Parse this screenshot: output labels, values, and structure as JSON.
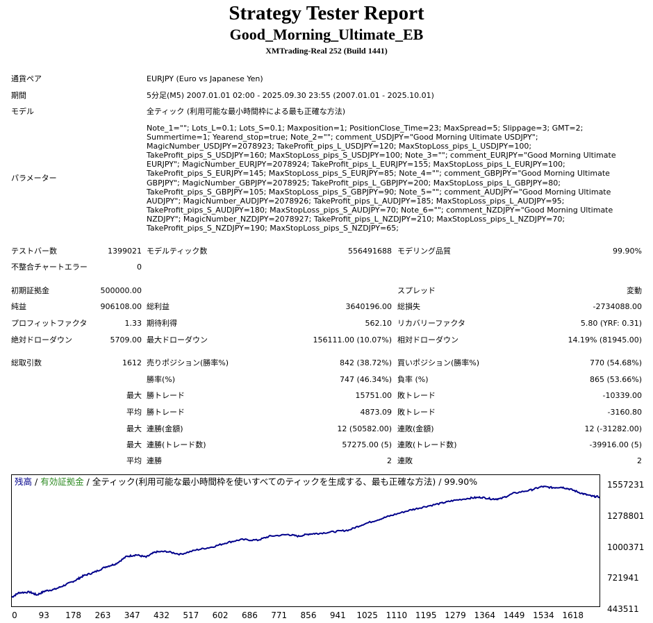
{
  "header": {
    "title": "Strategy Tester Report",
    "ea_name": "Good_Morning_Ultimate_EB",
    "server": "XMTrading-Real 252 (Build 1441)"
  },
  "settings": {
    "symbol_label": "通貨ペア",
    "symbol_value": "EURJPY (Euro vs Japanese Yen)",
    "period_label": "期間",
    "period_value": "5分足(M5) 2007.01.01 02:00 - 2025.09.30 23:55 (2007.01.01 - 2025.10.01)",
    "model_label": "モデル",
    "model_value": "全ティック (利用可能な最小時間枠による最も正確な方法)",
    "params_label": "パラメーター",
    "params_value": "Note_1=\"\"; Lots_L=0.1; Lots_S=0.1; Maxposition=1; PositionClose_Time=23; MaxSpread=5; Slippage=3; GMT=2; Summertime=1; Yearend_stop=true; Note_2=\"\"; comment_USDJPY=\"Good Morning Ultimate USDJPY\"; MagicNumber_USDJPY=2078923; TakeProfit_pips_L_USDJPY=120; MaxStopLoss_pips_L_USDJPY=100; TakeProfit_pips_S_USDJPY=160; MaxStopLoss_pips_S_USDJPY=100; Note_3=\"\"; comment_EURJPY=\"Good Morning Ultimate EURJPY\"; MagicNumber_EURJPY=2078924; TakeProfit_pips_L_EURJPY=155; MaxStopLoss_pips_L_EURJPY=100; TakeProfit_pips_S_EURJPY=145; MaxStopLoss_pips_S_EURJPY=85; Note_4=\"\"; comment_GBPJPY=\"Good Morning Ultimate GBPJPY\"; MagicNumber_GBPJPY=2078925; TakeProfit_pips_L_GBPJPY=200; MaxStopLoss_pips_L_GBPJPY=80; TakeProfit_pips_S_GBPJPY=105; MaxStopLoss_pips_S_GBPJPY=90; Note_5=\"\"; comment_AUDJPY=\"Good Morning Ultimate AUDJPY\"; MagicNumber_AUDJPY=2078926; TakeProfit_pips_L_AUDJPY=185; MaxStopLoss_pips_L_AUDJPY=95; TakeProfit_pips_S_AUDJPY=180; MaxStopLoss_pips_S_AUDJPY=70; Note_6=\"\"; comment_NZDJPY=\"Good Morning Ultimate NZDJPY\"; MagicNumber_NZDJPY=2078927; TakeProfit_pips_L_NZDJPY=210; MaxStopLoss_pips_L_NZDJPY=70; TakeProfit_pips_S_NZDJPY=190; MaxStopLoss_pips_S_NZDJPY=65;"
  },
  "stats": {
    "bars_label": "テストバー数",
    "bars_value": "1399021",
    "ticks_label": "モデルティック数",
    "ticks_value": "556491688",
    "quality_label": "モデリング品質",
    "quality_value": "99.90%",
    "mismatch_label": "不整合チャートエラー",
    "mismatch_value": "0",
    "deposit_label": "初期証拠金",
    "deposit_value": "500000.00",
    "spread_label": "スプレッド",
    "spread_value": "変動",
    "net_label": "純益",
    "net_value": "906108.00",
    "gross_profit_label": "総利益",
    "gross_profit_value": "3640196.00",
    "gross_loss_label": "総損失",
    "gross_loss_value": "-2734088.00",
    "pf_label": "プロフィットファクタ",
    "pf_value": "1.33",
    "expected_label": "期待利得",
    "expected_value": "562.10",
    "recovery_label": "リカバリーファクタ",
    "recovery_value": "5.80 (YRF: 0.31)",
    "abs_dd_label": "絶対ドローダウン",
    "abs_dd_value": "5709.00",
    "max_dd_label": "最大ドローダウン",
    "max_dd_value": "156111.00 (10.07%)",
    "rel_dd_label": "相対ドローダウン",
    "rel_dd_value": "14.19% (81945.00)",
    "trades_label": "総取引数",
    "trades_value": "1612",
    "short_label": "売りポジション(勝率%)",
    "short_value": "842 (38.72%)",
    "long_label": "買いポジション(勝率%)",
    "long_value": "770 (54.68%)",
    "winrate_label": "勝率(%)",
    "winrate_value": "747 (46.34%)",
    "lossrate_label": "負率 (%)",
    "lossrate_value": "865 (53.66%)",
    "max_label": "最大",
    "avg_label": "平均",
    "win_trade_label": "勝トレード",
    "max_win_value": "15751.00",
    "loss_trade_label": "敗トレード",
    "max_loss_value": "-10339.00",
    "avg_win_value": "4873.09",
    "avg_loss_value": "-3160.80",
    "cons_win_amt_label": "連勝(金額)",
    "cons_win_amt_value": "12 (50582.00)",
    "cons_loss_amt_label": "連敗(金額)",
    "cons_loss_amt_value": "12 (-31282.00)",
    "cons_win_cnt_label": "連勝(トレード数)",
    "cons_win_cnt_value": "57275.00 (5)",
    "cons_loss_cnt_label": "連敗(トレード数)",
    "cons_loss_cnt_value": "-39916.00 (5)",
    "avg_cons_win_label": "連勝",
    "avg_cons_win_value": "2",
    "avg_cons_loss_label": "連敗",
    "avg_cons_loss_value": "2"
  },
  "chart_data": {
    "type": "line",
    "legend": {
      "balance": "残高",
      "sep1": " / ",
      "equity": "有効証拠金",
      "sep2": " / ",
      "rest": "全ティック(利用可能な最小時間枠を使いすべてのティックを生成する、最も正確な方法) / 99.90%"
    },
    "colors": {
      "balance_line": "#00008b",
      "balance_text": "#00008b",
      "equity_text": "#2e8b22"
    },
    "y_ticks": [
      "1557231",
      "1278801",
      "1000371",
      "721941",
      "443511"
    ],
    "x_ticks": [
      "0",
      "93",
      "178",
      "263",
      "347",
      "432",
      "517",
      "602",
      "686",
      "771",
      "856",
      "941",
      "1025",
      "1110",
      "1195",
      "1279",
      "1364",
      "1449",
      "1534",
      "1618"
    ],
    "ylim": [
      443511,
      1557231
    ],
    "xlim": [
      0,
      1640
    ],
    "series": [
      {
        "x": [
          0,
          20,
          50,
          70,
          93,
          120,
          150,
          178,
          200,
          230,
          263,
          290,
          320,
          347,
          375,
          400,
          432,
          470,
          517,
          560,
          602,
          640,
          686,
          720,
          771,
          800,
          830,
          856,
          900,
          941,
          980,
          1025,
          1060,
          1110,
          1150,
          1195,
          1230,
          1279,
          1310,
          1340,
          1364,
          1400,
          1449,
          1480,
          1510,
          1534,
          1560,
          1590,
          1618,
          1640
        ],
        "y": [
          500000,
          540000,
          545000,
          520000,
          555000,
          570000,
          610000,
          650000,
          690000,
          720000,
          770000,
          795000,
          860000,
          875000,
          855000,
          900000,
          905000,
          880000,
          920000,
          945000,
          985000,
          1010000,
          1005000,
          1040000,
          1055000,
          1040000,
          1060000,
          1065000,
          1080000,
          1095000,
          1145000,
          1190000,
          1225000,
          1270000,
          1300000,
          1330000,
          1355000,
          1378000,
          1385000,
          1370000,
          1372000,
          1420000,
          1450000,
          1480000,
          1470000,
          1475000,
          1455000,
          1420000,
          1395000,
          1388000
        ]
      }
    ]
  }
}
